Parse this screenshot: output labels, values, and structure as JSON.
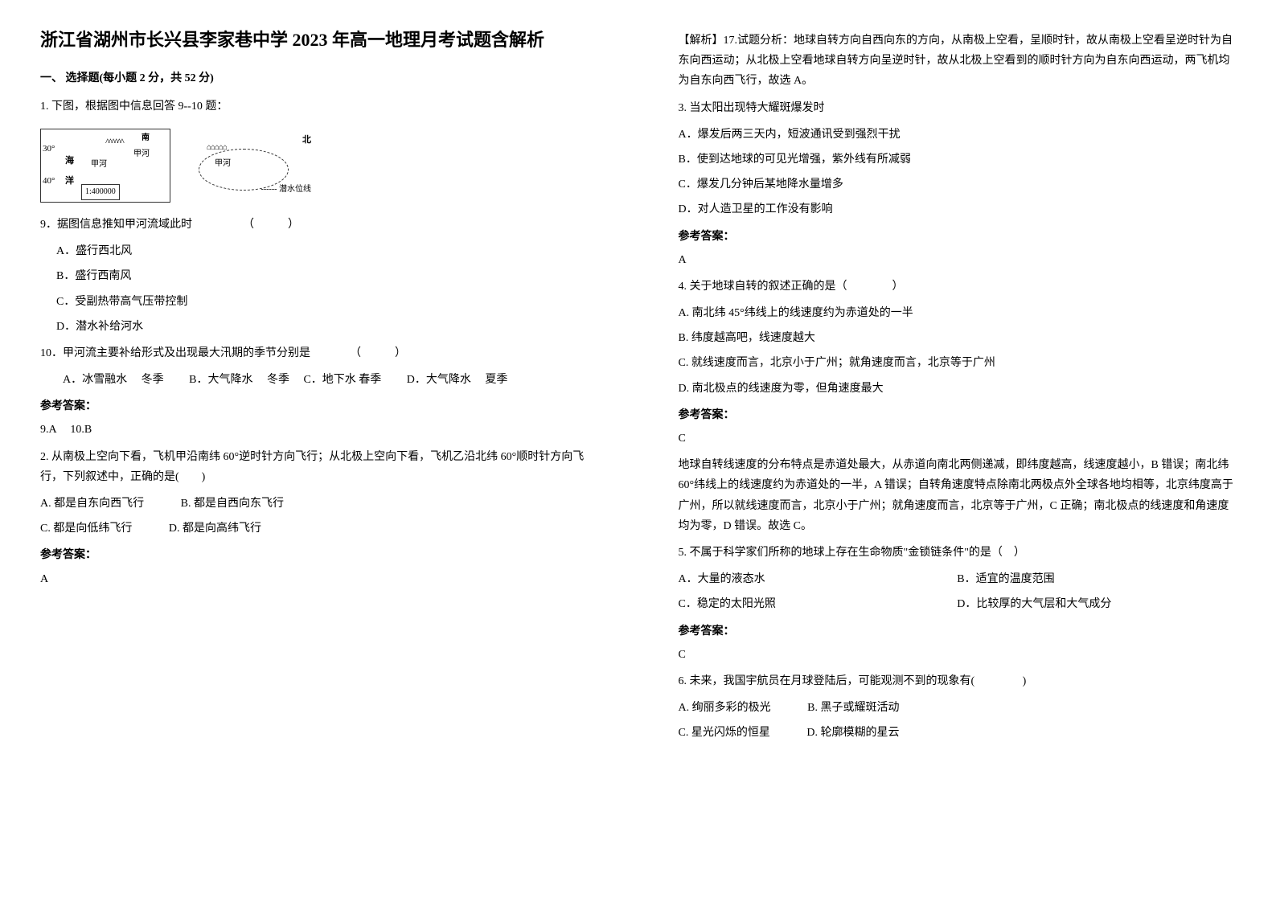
{
  "title": "浙江省湖州市长兴县李家巷中学 2023 年高一地理月考试题含解析",
  "section1_header": "一、 选择题(每小题 2 分，共 52 分)",
  "q1": {
    "stem": "1. 下图，根据图中信息回答 9--10 题：",
    "map_left": {
      "lat30": "30°",
      "lat40": "40°",
      "sea": "海",
      "ocean": "洋",
      "river": "甲河",
      "jia": "甲河",
      "north": "南",
      "mountains": "^^^^^^",
      "scale": "1:400000"
    },
    "map_right": {
      "north": "北",
      "jia": "甲河",
      "houses": "⌂⌂⌂⌂⌂",
      "legend": "------ 潜水位线"
    },
    "sub9": {
      "stem": "9．据图信息推知甲河流域此时　　　　　（　　　）",
      "optA": "A．盛行西北风",
      "optB": "B．盛行西南风",
      "optC": "C．受副热带高气压带控制",
      "optD": "D．潜水补给河水"
    },
    "sub10": {
      "stem": "10．甲河流主要补给形式及出现最大汛期的季节分别是　　　　（　　　）",
      "opts": "　　A．冰雪融水　 冬季　　  B．大气降水　 冬季　  C．地下水 春季　　 D．大气降水　 夏季"
    },
    "answer_label": "参考答案：",
    "answer": "9.A　 10.B"
  },
  "q2": {
    "stem": "2. 从南极上空向下看，飞机甲沿南纬 60°逆时针方向飞行；从北极上空向下看，飞机乙沿北纬 60°顺时针方向飞行，下列叙述中，正确的是(　　)",
    "optA": "A. 都是自东向西飞行",
    "optB": "B. 都是自西向东飞行",
    "optC": "C. 都是向低纬飞行",
    "optD": "D. 都是向高纬飞行",
    "answer_label": "参考答案：",
    "answer": "A",
    "analysis": "【解析】17.试题分析：地球自转方向自西向东的方向，从南极上空看，呈顺时针，故从南极上空看呈逆时针为自东向西运动；从北极上空看地球自转方向呈逆时针，故从北极上空看到的顺时针方向为自东向西运动，两飞机均为自东向西飞行，故选 A。"
  },
  "q3": {
    "stem": "3. 当太阳出现特大耀斑爆发时",
    "optA": "A．爆发后两三天内，短波通讯受到强烈干扰",
    "optB": "B．使到达地球的可见光增强，紫外线有所减弱",
    "optC": "C．爆发几分钟后某地降水量增多",
    "optD": "D．对人造卫星的工作没有影响",
    "answer_label": "参考答案：",
    "answer": "A"
  },
  "q4": {
    "stem": "4. 关于地球自转的叙述正确的是（　　　　）",
    "optA": "A. 南北纬 45°纬线上的线速度约为赤道处的一半",
    "optB": "B. 纬度越高吧，线速度越大",
    "optC": "C. 就线速度而言，北京小于广州；就角速度而言，北京等于广州",
    "optD": "D. 南北极点的线速度为零，但角速度最大",
    "answer_label": "参考答案：",
    "answer": "C",
    "explanation": "地球自转线速度的分布特点是赤道处最大，从赤道向南北两侧递减，即纬度越高，线速度越小，B 错误；南北纬 60°纬线上的线速度约为赤道处的一半，A 错误；自转角速度特点除南北两极点外全球各地均相等，北京纬度高于广州，所以就线速度而言，北京小于广州；就角速度而言，北京等于广州，C 正确；南北极点的线速度和角速度均为零，D 错误。故选 C。"
  },
  "q5": {
    "stem": "5. 不属于科学家们所称的地球上存在生命物质\"金锁链条件\"的是（　）",
    "optA": "A．大量的液态水",
    "optB": "B．适宜的温度范围",
    "optC": "C．稳定的太阳光照",
    "optD": "D．比较厚的大气层和大气成分",
    "answer_label": "参考答案：",
    "answer": "C"
  },
  "q6": {
    "stem": "6. 未来，我国宇航员在月球登陆后，可能观测不到的现象有(　　　　  )",
    "optA": "A. 绚丽多彩的极光",
    "optB": "B. 黑子或耀斑活动",
    "optC": "C. 星光闪烁的恒星",
    "optD": "D. 轮廓模糊的星云"
  }
}
